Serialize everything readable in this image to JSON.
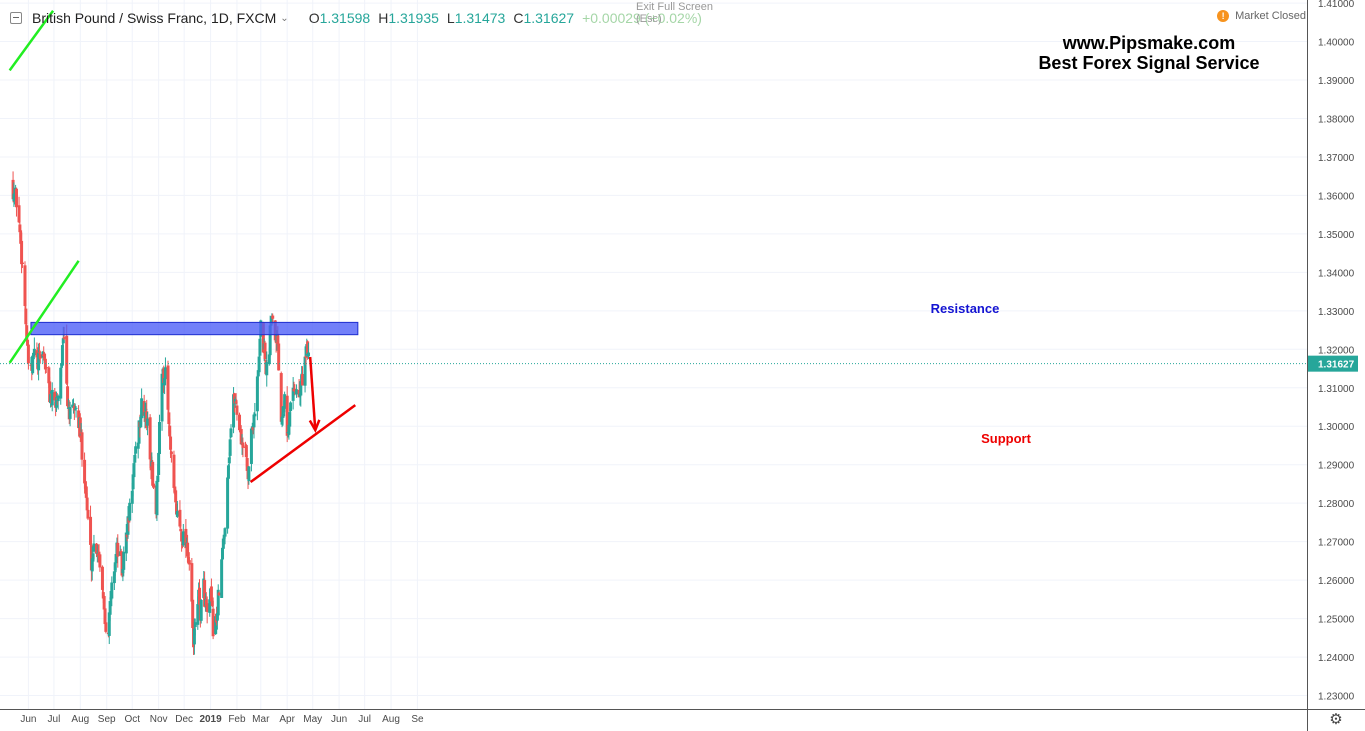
{
  "header": {
    "symbol": "British Pound / Swiss Franc, 1D, FXCM",
    "open_label": "O",
    "open": "1.31598",
    "high_label": "H",
    "high": "1.31935",
    "low_label": "L",
    "low": "1.31473",
    "close_label": "C",
    "close": "1.31627",
    "change": "+0.00029 (+0.02%)",
    "exit_fullscreen": "Exit Full Screen",
    "esc": "(Esc)",
    "market_status": "Market Closed"
  },
  "watermark": {
    "line1": "www.Pipsmake.com",
    "line2": "Best Forex Signal Service"
  },
  "chart_data": {
    "type": "candlestick",
    "symbol": "GBPCHF",
    "timeframe": "1D",
    "y_axis": {
      "range": [
        1.2265,
        1.4108
      ],
      "ticks": [
        "1.23000",
        "1.24000",
        "1.25000",
        "1.26000",
        "1.27000",
        "1.28000",
        "1.29000",
        "1.30000",
        "1.31000",
        "1.32000",
        "1.33000",
        "1.34000",
        "1.35000",
        "1.36000",
        "1.37000",
        "1.38000",
        "1.39000",
        "1.40000",
        "1.41000"
      ]
    },
    "x_axis": {
      "labels": [
        "Jun",
        "Jul",
        "Aug",
        "Sep",
        "Oct",
        "Nov",
        "Dec",
        "2019",
        "Feb",
        "Mar",
        "Apr",
        "May",
        "Jun",
        "Jul",
        "Aug",
        "Se"
      ]
    },
    "last_price": "1.31627",
    "close_path": [
      [
        "2018-05-14",
        1.362
      ],
      [
        "2018-05-19",
        1.358
      ],
      [
        "2018-05-24",
        1.345
      ],
      [
        "2018-05-28",
        1.332
      ],
      [
        "2018-05-31",
        1.318
      ],
      [
        "2018-06-04",
        1.313
      ],
      [
        "2018-06-08",
        1.32
      ],
      [
        "2018-06-12",
        1.315
      ],
      [
        "2018-06-16",
        1.32
      ],
      [
        "2018-06-20",
        1.318
      ],
      [
        "2018-06-24",
        1.31
      ],
      [
        "2018-06-28",
        1.307
      ],
      [
        "2018-07-02",
        1.305
      ],
      [
        "2018-07-06",
        1.309
      ],
      [
        "2018-07-10",
        1.318
      ],
      [
        "2018-07-13",
        1.322
      ],
      [
        "2018-07-17",
        1.306
      ],
      [
        "2018-07-21",
        1.301
      ],
      [
        "2018-07-25",
        1.305
      ],
      [
        "2018-07-29",
        1.303
      ],
      [
        "2018-08-02",
        1.296
      ],
      [
        "2018-08-06",
        1.288
      ],
      [
        "2018-08-10",
        1.275
      ],
      [
        "2018-08-14",
        1.265
      ],
      [
        "2018-08-18",
        1.27
      ],
      [
        "2018-08-22",
        1.268
      ],
      [
        "2018-08-26",
        1.262
      ],
      [
        "2018-08-30",
        1.25
      ],
      [
        "2018-09-03",
        1.248
      ],
      [
        "2018-09-07",
        1.258
      ],
      [
        "2018-09-11",
        1.266
      ],
      [
        "2018-09-15",
        1.269
      ],
      [
        "2018-09-19",
        1.262
      ],
      [
        "2018-09-23",
        1.27
      ],
      [
        "2018-09-27",
        1.276
      ],
      [
        "2018-10-01",
        1.285
      ],
      [
        "2018-10-05",
        1.292
      ],
      [
        "2018-10-09",
        1.3
      ],
      [
        "2018-10-13",
        1.306
      ],
      [
        "2018-10-17",
        1.303
      ],
      [
        "2018-10-21",
        1.296
      ],
      [
        "2018-10-25",
        1.286
      ],
      [
        "2018-10-29",
        1.279
      ],
      [
        "2018-11-02",
        1.3
      ],
      [
        "2018-11-06",
        1.315
      ],
      [
        "2018-11-10",
        1.312
      ],
      [
        "2018-11-14",
        1.296
      ],
      [
        "2018-11-18",
        1.284
      ],
      [
        "2018-11-22",
        1.278
      ],
      [
        "2018-11-26",
        1.274
      ],
      [
        "2018-11-30",
        1.271
      ],
      [
        "2018-12-04",
        1.27
      ],
      [
        "2018-12-08",
        1.262
      ],
      [
        "2018-12-12",
        1.242
      ],
      [
        "2018-12-16",
        1.257
      ],
      [
        "2018-12-20",
        1.252
      ],
      [
        "2018-12-24",
        1.258
      ],
      [
        "2018-12-28",
        1.25
      ],
      [
        "2019-01-01",
        1.255
      ],
      [
        "2019-01-05",
        1.246
      ],
      [
        "2019-01-09",
        1.252
      ],
      [
        "2019-01-13",
        1.262
      ],
      [
        "2019-01-17",
        1.272
      ],
      [
        "2019-01-21",
        1.288
      ],
      [
        "2019-01-25",
        1.3
      ],
      [
        "2019-01-29",
        1.308
      ],
      [
        "2019-02-02",
        1.303
      ],
      [
        "2019-02-06",
        1.297
      ],
      [
        "2019-02-10",
        1.294
      ],
      [
        "2019-02-14",
        1.288
      ],
      [
        "2019-02-18",
        1.298
      ],
      [
        "2019-02-22",
        1.305
      ],
      [
        "2019-02-26",
        1.313
      ],
      [
        "2019-03-01",
        1.326
      ],
      [
        "2019-03-05",
        1.32
      ],
      [
        "2019-03-09",
        1.312
      ],
      [
        "2019-03-13",
        1.33
      ],
      [
        "2019-03-17",
        1.326
      ],
      [
        "2019-03-21",
        1.322
      ],
      [
        "2019-03-25",
        1.302
      ],
      [
        "2019-03-29",
        1.31
      ],
      [
        "2019-04-02",
        1.297
      ],
      [
        "2019-04-06",
        1.309
      ],
      [
        "2019-04-10",
        1.311
      ],
      [
        "2019-04-14",
        1.306
      ],
      [
        "2019-04-18",
        1.312
      ],
      [
        "2019-04-22",
        1.317
      ],
      [
        "2019-04-26",
        1.32
      ],
      [
        "2019-04-28",
        1.316
      ]
    ],
    "annotations": {
      "resistance_zone": {
        "label": "Resistance",
        "price_low": 1.3238,
        "price_high": 1.327,
        "from": "2018-06-04",
        "to": "2019-06-23"
      },
      "support_line": {
        "label": "Support",
        "from": [
          "2019-02-17",
          1.2855
        ],
        "to": [
          "2019-06-20",
          1.3055
        ]
      },
      "arrow": {
        "from": [
          "2019-04-28",
          1.318
        ],
        "to": [
          "2019-05-04",
          1.299
        ]
      },
      "green_trendlines": [
        {
          "from": [
            "2018-05-10",
            1.3925
          ],
          "to": [
            "2018-06-30",
            1.408
          ]
        },
        {
          "from": [
            "2018-05-10",
            1.3165
          ],
          "to": [
            "2018-07-30",
            1.343
          ]
        }
      ]
    },
    "colors": {
      "up": "#26a69a",
      "down": "#ef5350",
      "resistance_fill": "#4a5cf7",
      "resistance_text": "#1414d2",
      "support": "#ee0000",
      "trendline": "#22ee22",
      "last_price_badge": "#26a69a",
      "grid": "#f0f3fa"
    }
  }
}
